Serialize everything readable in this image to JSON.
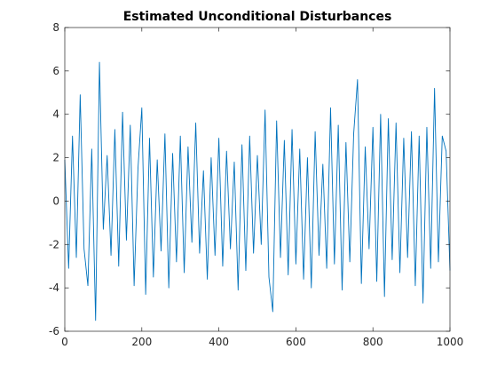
{
  "chart_data": {
    "type": "line",
    "title": "Estimated Unconditional Disturbances",
    "xlabel": "",
    "ylabel": "",
    "xlim": [
      0,
      1000
    ],
    "ylim": [
      -6,
      8
    ],
    "xticks": [
      0,
      200,
      400,
      600,
      800,
      1000
    ],
    "yticks": [
      -6,
      -4,
      -2,
      0,
      2,
      4,
      6,
      8
    ],
    "grid": false,
    "box": true,
    "series": [
      {
        "color": "#0072BD",
        "x": [
          0,
          10,
          20,
          30,
          40,
          50,
          60,
          70,
          80,
          90,
          100,
          110,
          120,
          130,
          140,
          150,
          160,
          170,
          180,
          190,
          200,
          210,
          220,
          230,
          240,
          250,
          260,
          270,
          280,
          290,
          300,
          310,
          320,
          330,
          340,
          350,
          360,
          370,
          380,
          390,
          400,
          410,
          420,
          430,
          440,
          450,
          460,
          470,
          480,
          490,
          500,
          510,
          520,
          530,
          540,
          550,
          560,
          570,
          580,
          590,
          600,
          610,
          620,
          630,
          640,
          650,
          660,
          670,
          680,
          690,
          700,
          710,
          720,
          730,
          740,
          750,
          760,
          770,
          780,
          790,
          800,
          810,
          820,
          830,
          840,
          850,
          860,
          870,
          880,
          890,
          900,
          910,
          920,
          930,
          940,
          950,
          960,
          970,
          980,
          990,
          1000
        ],
        "y": [
          1.9,
          -3.1,
          3.0,
          -2.6,
          4.9,
          -2.2,
          -3.9,
          2.4,
          -5.5,
          6.4,
          -1.3,
          2.1,
          -2.5,
          3.3,
          -3.0,
          4.1,
          -1.8,
          3.5,
          -3.9,
          1.5,
          4.3,
          -4.3,
          2.9,
          -3.5,
          1.9,
          -2.3,
          3.1,
          -4.0,
          2.2,
          -2.8,
          3.0,
          -3.3,
          2.5,
          -1.9,
          3.6,
          -2.4,
          1.4,
          -3.6,
          2.0,
          -2.5,
          2.9,
          -3.0,
          2.3,
          -2.2,
          1.8,
          -4.1,
          2.6,
          -3.2,
          3.0,
          -2.4,
          2.1,
          -2.0,
          4.2,
          -3.5,
          -5.1,
          3.7,
          -2.6,
          2.8,
          -3.4,
          3.3,
          -2.9,
          2.4,
          -3.6,
          2.0,
          -4.0,
          3.2,
          -2.5,
          1.7,
          -3.1,
          4.3,
          -2.9,
          3.5,
          -4.1,
          2.7,
          -2.8,
          3.1,
          5.6,
          -3.8,
          2.5,
          -2.2,
          3.4,
          -3.7,
          4.0,
          -4.4,
          3.8,
          -2.7,
          3.6,
          -3.3,
          2.9,
          -2.6,
          3.2,
          -3.9,
          3.0,
          -4.7,
          3.4,
          -3.1,
          5.2,
          -2.8,
          3.0,
          2.3,
          -3.2
        ]
      }
    ]
  }
}
